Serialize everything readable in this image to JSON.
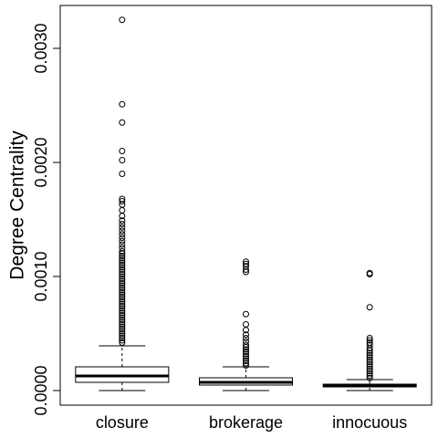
{
  "chart_data": {
    "type": "boxplot",
    "y_label": "Degree Centrality",
    "categories": [
      "closure",
      "brokerage",
      "innocuous"
    ],
    "boxes": [
      {
        "min": 0,
        "q1": 7.2e-05,
        "median": 0.000128,
        "q3": 0.000208,
        "max": 0.000392,
        "outliers": [
          0.00325,
          0.00251,
          0.00235,
          0.0021,
          0.00202,
          0.0019,
          0.00168,
          0.00166,
          0.00163,
          0.00158,
          0.00153,
          0.00149,
          0.00146,
          0.00143,
          0.0014,
          0.00137,
          0.00134,
          0.00131,
          0.00128,
          0.00125,
          0.00122,
          0.0012,
          0.00118,
          0.00116,
          0.00114,
          0.00112,
          0.0011,
          0.00108,
          0.00106,
          0.00104,
          0.00102,
          0.001,
          0.00098,
          0.00096,
          0.00094,
          0.00092,
          0.0009,
          0.00088,
          0.00086,
          0.00084,
          0.00082,
          0.0008,
          0.00078,
          0.00076,
          0.00074,
          0.00072,
          0.0007,
          0.00068,
          0.00066,
          0.00064,
          0.00062,
          0.0006,
          0.00058,
          0.00056,
          0.00054,
          0.00052,
          0.0005,
          0.00048,
          0.00046,
          0.00044,
          0.00042
        ]
      },
      {
        "min": 0,
        "q1": 4.8e-05,
        "median": 7.2e-05,
        "q3": 0.000112,
        "max": 0.000208,
        "outliers": [
          0.00113,
          0.00111,
          0.00109,
          0.00106,
          0.00104,
          0.00067,
          0.00058,
          0.00053,
          0.00049,
          0.00046,
          0.00043,
          0.0004,
          0.00038,
          0.00036,
          0.00034,
          0.00032,
          0.0003,
          0.00028,
          0.00026,
          0.00024,
          0.00022
        ]
      },
      {
        "min": 0,
        "q1": 3.2e-05,
        "median": 4e-05,
        "q3": 5.6e-05,
        "max": 9.6e-05,
        "outliers": [
          0.00103,
          0.00102,
          0.00073,
          0.00046,
          0.00044,
          0.00042,
          0.0004,
          0.00037,
          0.00035,
          0.00033,
          0.00031,
          0.00029,
          0.00027,
          0.00025,
          0.00023,
          0.00021,
          0.00019,
          0.00017,
          0.00015,
          0.00013,
          0.00011
        ]
      }
    ],
    "ylim": [
      -0.000128,
      0.003376
    ],
    "yticks": [
      {
        "value": 0,
        "label": "0.0000"
      },
      {
        "value": 0.001,
        "label": "0.0010"
      },
      {
        "value": 0.002,
        "label": "0.0020"
      },
      {
        "value": 0.003,
        "label": "0.0030"
      }
    ],
    "color": "#ffffff"
  }
}
